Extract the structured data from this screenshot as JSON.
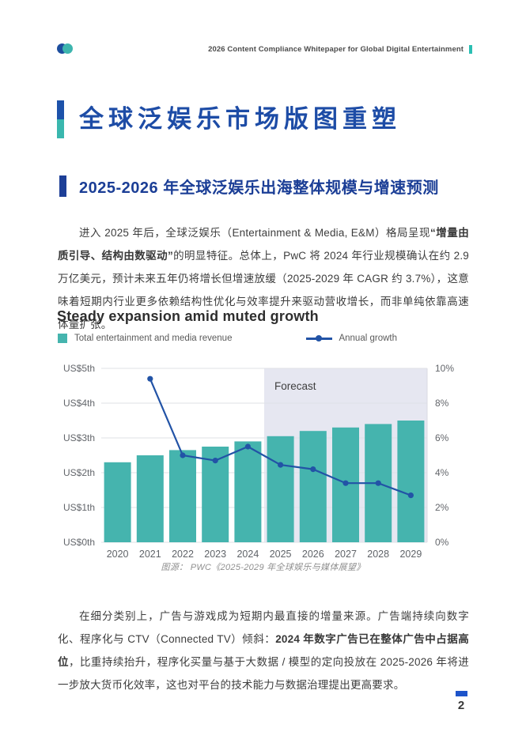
{
  "colors": {
    "accent_blue": "#1d52aa",
    "accent_teal": "#3ab7ae",
    "title_blue": "#1d4ca6",
    "section_blue": "#1b3e96",
    "bar_teal": "#45b4ae",
    "line_blue": "#2253a6",
    "forecast_bg": "#e6e7f1",
    "footer_blue": "#1e54ca",
    "body_text": "#3d3d3d"
  },
  "header": {
    "logo": "dual-circle-logo",
    "title": "2026 Content Compliance Whitepaper for Global Digital Entertainment"
  },
  "page_title": "全球泛娱乐市场版图重塑",
  "section_heading": "2025-2026 年全球泛娱乐出海整体规模与增速预测",
  "paragraphs": {
    "p1_pre": "进入 2025 年后，全球泛娱乐（Entertainment & Media, E&M）格局呈现",
    "p1_bold": "“增量由质引导、结构由数驱动”",
    "p1_post": "的明显特征。总体上，PwC 将 2024 年行业规模确认在约 2.9 万亿美元，预计未来五年仍将增长但增速放缓（2025-2029 年 CAGR 约 3.7%），这意味着短期内行业更多依赖结构性优化与效率提升来驱动营收增长，而非单纯依靠高速体量扩张。",
    "p2_pre": "在细分类别上，广告与游戏成为短期内最直接的增量来源。广告端持续向数字化、程序化与 CTV（Connected TV）倾斜：",
    "p2_bold": "2024 年数字广告已在整体广告中占据高位",
    "p2_post": "，比重持续抬升，程序化买量与基于大数据 / 模型的定向投放在 2025-2026 年将进一步放大货币化效率，这也对平台的技术能力与数据治理提出更高要求。"
  },
  "chart_data": {
    "type": "bar",
    "title": "Steady expansion amid muted growth",
    "categories": [
      "2020",
      "2021",
      "2022",
      "2023",
      "2024",
      "2025",
      "2026",
      "2027",
      "2028",
      "2029"
    ],
    "series": [
      {
        "name": "Total entertainment and media revenue",
        "render": "bar",
        "axis": "left",
        "color": "#45b4ae",
        "values": [
          2.3,
          2.5,
          2.65,
          2.75,
          2.9,
          3.05,
          3.2,
          3.3,
          3.4,
          3.5
        ]
      },
      {
        "name": "Annual growth",
        "render": "line",
        "axis": "right",
        "color": "#2253a6",
        "values": [
          null,
          9.4,
          5.0,
          4.7,
          5.5,
          4.45,
          4.2,
          3.4,
          3.4,
          2.7
        ]
      }
    ],
    "left_axis": {
      "ticks": [
        "US$0th",
        "US$1th",
        "US$2th",
        "US$3th",
        "US$4th",
        "US$5th"
      ],
      "min": 0,
      "max": 5
    },
    "right_axis": {
      "ticks": [
        "0%",
        "2%",
        "4%",
        "6%",
        "8%",
        "10%"
      ],
      "min": 0,
      "max": 10
    },
    "forecast": {
      "label": "Forecast",
      "start_category": "2025",
      "bg": "#e6e7f1"
    },
    "grid": true,
    "legend_position": "top"
  },
  "caption": "图源：  PWC《2025-2029 年全球娱乐与媒体展望》",
  "footer": {
    "page_number": "2"
  }
}
